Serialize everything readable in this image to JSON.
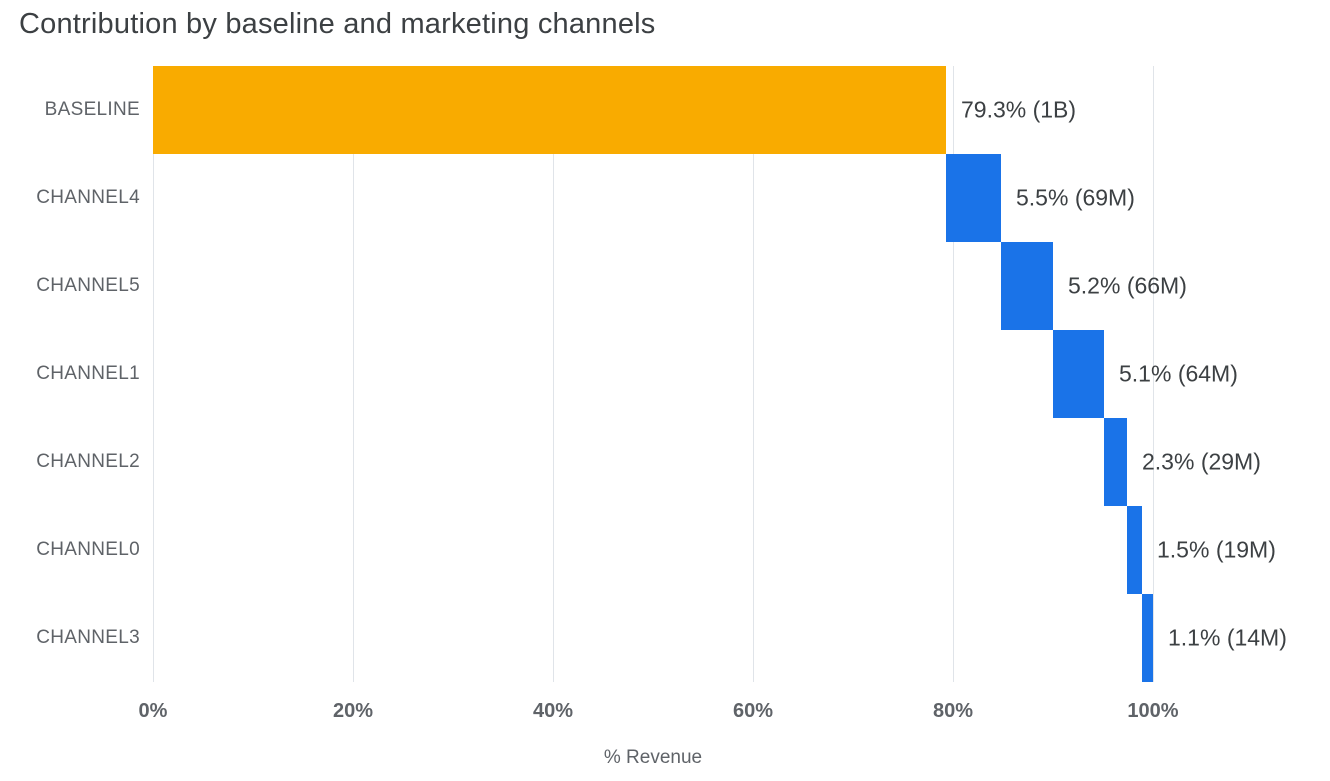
{
  "title": "Contribution by baseline and marketing channels",
  "chart_data": {
    "type": "bar",
    "variant": "horizontal-waterfall",
    "title": "Contribution by baseline and marketing channels",
    "categories": [
      "BASELINE",
      "CHANNEL4",
      "CHANNEL5",
      "CHANNEL1",
      "CHANNEL2",
      "CHANNEL0",
      "CHANNEL3"
    ],
    "values_pct": [
      79.3,
      5.5,
      5.2,
      5.1,
      2.3,
      1.5,
      1.1
    ],
    "bar_starts_pct": [
      0,
      79.3,
      84.8,
      90.0,
      95.1,
      97.4,
      98.9
    ],
    "value_labels": [
      "79.3% (1B)",
      "5.5% (69M)",
      "5.2% (66M)",
      "5.1% (64M)",
      "2.3% (29M)",
      "1.5% (19M)",
      "1.1% (14M)"
    ],
    "absolute_values": [
      "1B",
      "69M",
      "66M",
      "64M",
      "29M",
      "19M",
      "14M"
    ],
    "bar_colors": [
      "#f9ab00",
      "#1a73e8",
      "#1a73e8",
      "#1a73e8",
      "#1a73e8",
      "#1a73e8",
      "#1a73e8"
    ],
    "xlabel": "% Revenue",
    "x_ticks": [
      {
        "value": 0,
        "label": "0%"
      },
      {
        "value": 20,
        "label": "20%"
      },
      {
        "value": 40,
        "label": "40%"
      },
      {
        "value": 60,
        "label": "60%"
      },
      {
        "value": 80,
        "label": "80%"
      },
      {
        "value": 100,
        "label": "100%"
      }
    ],
    "xlim": [
      0,
      116.7
    ],
    "grid": "vertical",
    "legend": "none",
    "colors": {
      "baseline_bar": "#f9ab00",
      "channel_bar": "#1a73e8",
      "gridline": "#e0e4e9",
      "title_text": "#3c4043",
      "category_text": "#5f6368",
      "value_text": "#3c4043",
      "tick_text": "#5f6368",
      "axis_label_text": "#5f6368"
    }
  }
}
